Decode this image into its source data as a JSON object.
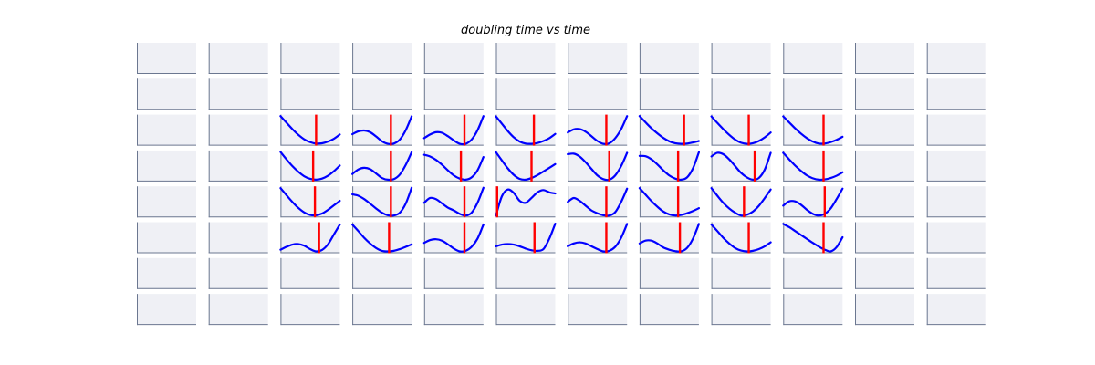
{
  "chart_data": {
    "type": "line",
    "title": "doubling time vs time",
    "grid": false,
    "rows": 8,
    "cols": 12,
    "panel_background": "#eff0f5",
    "axis_color": "#6b7790",
    "curve_color": "#0000ff",
    "marker_color": "#ff0000",
    "x": [
      0,
      0.1,
      0.2,
      0.3,
      0.4,
      0.5,
      0.6,
      0.7,
      0.8,
      0.9,
      1.0
    ],
    "ylim": [
      0,
      1
    ],
    "panels": [
      {
        "row": 2,
        "col": 2,
        "y": [
          0.98,
          0.75,
          0.52,
          0.32,
          0.16,
          0.06,
          0.01,
          0.02,
          0.08,
          0.18,
          0.33
        ],
        "marker": 0.6
      },
      {
        "row": 2,
        "col": 3,
        "y": [
          0.34,
          0.44,
          0.47,
          0.41,
          0.26,
          0.09,
          0.0,
          0.01,
          0.15,
          0.48,
          0.97
        ],
        "marker": 0.65
      },
      {
        "row": 2,
        "col": 4,
        "y": [
          0.2,
          0.33,
          0.41,
          0.39,
          0.27,
          0.12,
          0.0,
          0.0,
          0.15,
          0.48,
          0.98
        ],
        "marker": 0.68
      },
      {
        "row": 2,
        "col": 5,
        "y": [
          0.97,
          0.71,
          0.45,
          0.23,
          0.08,
          0.01,
          0.0,
          0.03,
          0.1,
          0.2,
          0.35
        ],
        "marker": 0.64
      },
      {
        "row": 2,
        "col": 6,
        "y": [
          0.4,
          0.51,
          0.52,
          0.43,
          0.27,
          0.1,
          0.0,
          0.02,
          0.2,
          0.52,
          0.98
        ],
        "marker": 0.65
      },
      {
        "row": 2,
        "col": 7,
        "y": [
          0.98,
          0.76,
          0.55,
          0.37,
          0.21,
          0.09,
          0.02,
          0.0,
          0.01,
          0.05,
          0.1
        ],
        "marker": 0.75
      },
      {
        "row": 2,
        "col": 8,
        "y": [
          0.97,
          0.74,
          0.52,
          0.32,
          0.15,
          0.04,
          0.0,
          0.02,
          0.1,
          0.23,
          0.4
        ],
        "marker": 0.63
      },
      {
        "row": 2,
        "col": 9,
        "y": [
          0.97,
          0.76,
          0.55,
          0.36,
          0.2,
          0.08,
          0.01,
          0.01,
          0.06,
          0.14,
          0.25
        ],
        "marker": 0.68
      },
      {
        "row": 3,
        "col": 2,
        "y": [
          0.98,
          0.72,
          0.48,
          0.28,
          0.12,
          0.03,
          0.0,
          0.04,
          0.14,
          0.3,
          0.5
        ],
        "marker": 0.55
      },
      {
        "row": 3,
        "col": 3,
        "y": [
          0.2,
          0.36,
          0.42,
          0.37,
          0.22,
          0.06,
          0.0,
          0.02,
          0.18,
          0.52,
          0.97
        ],
        "marker": 0.65
      },
      {
        "row": 3,
        "col": 4,
        "y": [
          0.88,
          0.82,
          0.7,
          0.53,
          0.33,
          0.15,
          0.04,
          0.0,
          0.08,
          0.33,
          0.8
        ],
        "marker": 0.62
      },
      {
        "row": 3,
        "col": 5,
        "y": [
          0.97,
          0.68,
          0.4,
          0.17,
          0.03,
          0.0,
          0.06,
          0.16,
          0.29,
          0.42,
          0.55
        ],
        "marker": 0.6
      },
      {
        "row": 3,
        "col": 6,
        "y": [
          0.9,
          0.92,
          0.82,
          0.62,
          0.38,
          0.15,
          0.02,
          0.0,
          0.15,
          0.48,
          0.95
        ],
        "marker": 0.7
      },
      {
        "row": 3,
        "col": 7,
        "y": [
          0.84,
          0.83,
          0.72,
          0.54,
          0.33,
          0.15,
          0.04,
          0.0,
          0.08,
          0.4,
          0.97
        ],
        "marker": 0.65
      },
      {
        "row": 3,
        "col": 8,
        "y": [
          0.82,
          0.95,
          0.9,
          0.72,
          0.48,
          0.24,
          0.08,
          0.0,
          0.06,
          0.36,
          0.95
        ],
        "marker": 0.73
      },
      {
        "row": 3,
        "col": 9,
        "y": [
          0.95,
          0.72,
          0.5,
          0.31,
          0.15,
          0.05,
          0.0,
          0.01,
          0.06,
          0.14,
          0.26
        ],
        "marker": 0.68
      },
      {
        "row": 4,
        "col": 2,
        "y": [
          0.97,
          0.72,
          0.48,
          0.27,
          0.11,
          0.02,
          0.01,
          0.07,
          0.2,
          0.36,
          0.52
        ],
        "marker": 0.58
      },
      {
        "row": 4,
        "col": 3,
        "y": [
          0.75,
          0.7,
          0.58,
          0.42,
          0.25,
          0.1,
          0.01,
          0.0,
          0.1,
          0.42,
          0.98
        ],
        "marker": 0.65
      },
      {
        "row": 4,
        "col": 4,
        "y": [
          0.45,
          0.62,
          0.58,
          0.43,
          0.28,
          0.18,
          0.06,
          0.0,
          0.1,
          0.45,
          0.98
        ],
        "marker": 0.68
      },
      {
        "row": 4,
        "col": 5,
        "y": [
          0.0,
          0.68,
          0.92,
          0.8,
          0.52,
          0.45,
          0.62,
          0.82,
          0.9,
          0.82,
          0.78
        ],
        "marker": 0.02
      },
      {
        "row": 4,
        "col": 6,
        "y": [
          0.48,
          0.62,
          0.52,
          0.35,
          0.18,
          0.08,
          0.01,
          0.0,
          0.12,
          0.48,
          0.95
        ],
        "marker": 0.65
      },
      {
        "row": 4,
        "col": 7,
        "y": [
          0.97,
          0.74,
          0.51,
          0.31,
          0.14,
          0.04,
          0.0,
          0.02,
          0.08,
          0.16,
          0.26
        ],
        "marker": 0.65
      },
      {
        "row": 4,
        "col": 8,
        "y": [
          0.97,
          0.7,
          0.45,
          0.25,
          0.1,
          0.0,
          0.03,
          0.14,
          0.34,
          0.62,
          0.92
        ],
        "marker": 0.55
      },
      {
        "row": 4,
        "col": 9,
        "y": [
          0.35,
          0.5,
          0.5,
          0.38,
          0.2,
          0.06,
          0.0,
          0.06,
          0.25,
          0.58,
          0.95
        ],
        "marker": 0.7
      },
      {
        "row": 5,
        "col": 2,
        "y": [
          0.06,
          0.16,
          0.24,
          0.26,
          0.2,
          0.08,
          0.0,
          0.05,
          0.25,
          0.6,
          0.95
        ],
        "marker": 0.65
      },
      {
        "row": 5,
        "col": 3,
        "y": [
          0.95,
          0.72,
          0.48,
          0.28,
          0.12,
          0.02,
          0.0,
          0.02,
          0.08,
          0.16,
          0.25
        ],
        "marker": 0.62
      },
      {
        "row": 5,
        "col": 4,
        "y": [
          0.3,
          0.4,
          0.43,
          0.38,
          0.25,
          0.1,
          0.0,
          0.02,
          0.16,
          0.45,
          0.95
        ],
        "marker": 0.68
      },
      {
        "row": 5,
        "col": 5,
        "y": [
          0.18,
          0.24,
          0.26,
          0.24,
          0.18,
          0.1,
          0.04,
          0.02,
          0.08,
          0.45,
          0.98
        ],
        "marker": 0.65
      },
      {
        "row": 5,
        "col": 6,
        "y": [
          0.18,
          0.28,
          0.32,
          0.28,
          0.18,
          0.08,
          0.0,
          0.02,
          0.16,
          0.48,
          0.97
        ],
        "marker": 0.65
      },
      {
        "row": 5,
        "col": 7,
        "y": [
          0.28,
          0.38,
          0.38,
          0.28,
          0.14,
          0.06,
          0.01,
          0.0,
          0.12,
          0.45,
          0.97
        ],
        "marker": 0.68
      },
      {
        "row": 5,
        "col": 8,
        "y": [
          0.95,
          0.72,
          0.48,
          0.28,
          0.12,
          0.03,
          0.0,
          0.02,
          0.08,
          0.18,
          0.32
        ],
        "marker": 0.63
      },
      {
        "row": 5,
        "col": 9,
        "y": [
          0.97,
          0.86,
          0.72,
          0.58,
          0.44,
          0.3,
          0.17,
          0.06,
          0.0,
          0.15,
          0.5
        ],
        "marker": 0.68
      }
    ]
  }
}
